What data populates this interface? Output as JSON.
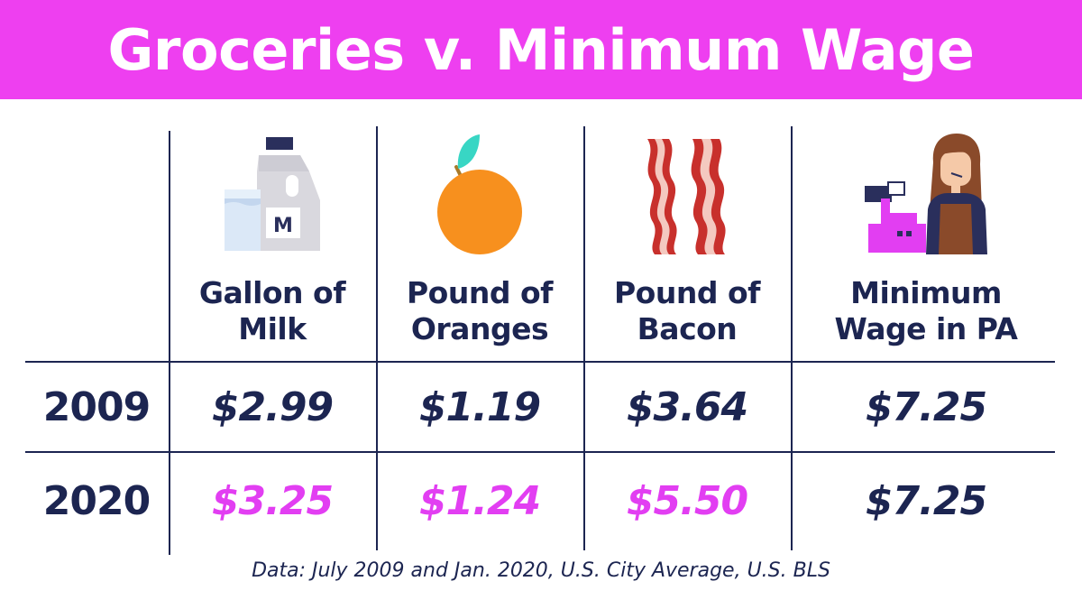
{
  "title": "Groceries v. Minimum Wage",
  "colors": {
    "banner": "#ee3ff0",
    "navy": "#1c2551",
    "highlight": "#e23ef2"
  },
  "chart_data": {
    "type": "table",
    "columns": [
      {
        "label": "Gallon of\nMilk",
        "icon": "milk-jug-icon"
      },
      {
        "label": "Pound of\nOranges",
        "icon": "orange-icon"
      },
      {
        "label": "Pound of\nBacon",
        "icon": "bacon-icon"
      },
      {
        "label": "Minimum\nWage in PA",
        "icon": "cashier-icon"
      }
    ],
    "rows": [
      {
        "year": "2009",
        "values": [
          "$2.99",
          "$1.19",
          "$3.64",
          "$7.25"
        ],
        "highlight": [
          false,
          false,
          false,
          false
        ]
      },
      {
        "year": "2020",
        "values": [
          "$3.25",
          "$1.24",
          "$5.50",
          "$7.25"
        ],
        "highlight": [
          true,
          true,
          true,
          false
        ]
      }
    ],
    "milk_label": "M"
  },
  "footnote": "Data: July 2009 and Jan. 2020, U.S. City Average, U.S. BLS"
}
